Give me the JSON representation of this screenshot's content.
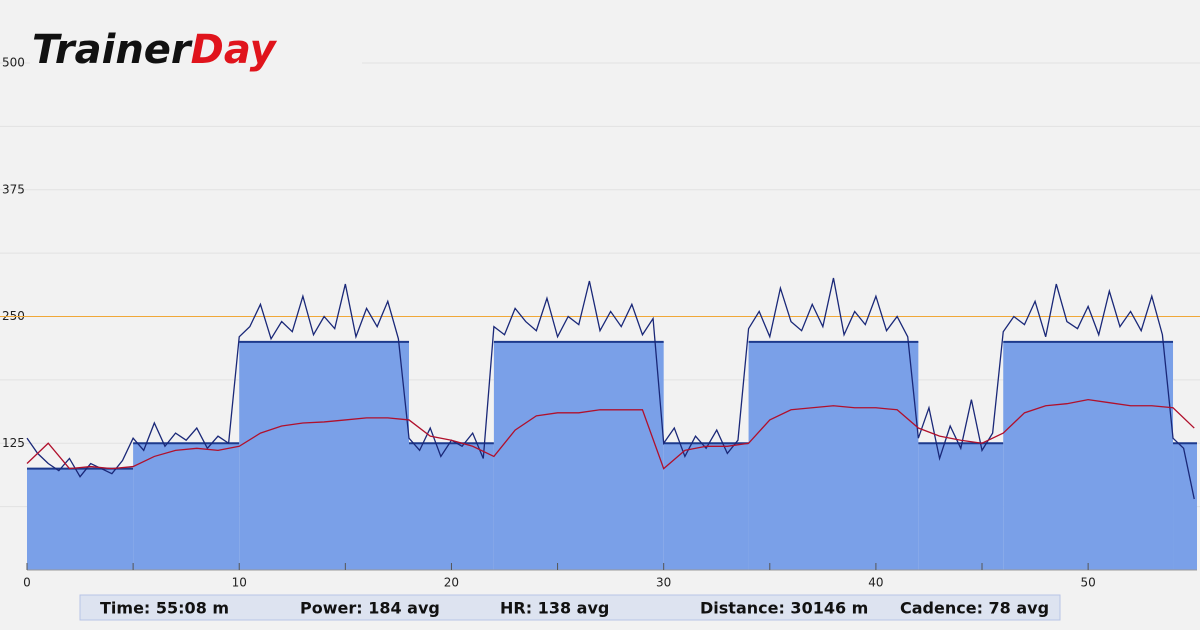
{
  "logo": {
    "brand": "Trainer",
    "accent": "Day"
  },
  "chart_data": {
    "type": "line",
    "xlim": [
      0,
      55.13
    ],
    "xticks": [
      0,
      10,
      20,
      30,
      40,
      50
    ],
    "x_minor_ticks": [
      5,
      15,
      25,
      35,
      45
    ],
    "ylim": [
      0,
      500
    ],
    "yticks": [
      125,
      250,
      375,
      500
    ],
    "y_minor_grid": [
      62.5,
      187.5,
      312.5,
      437.5
    ],
    "grid": true,
    "threshold": {
      "value": 250,
      "color": "#f0a838"
    },
    "target": {
      "color": "#7aa0e8",
      "edge_color": "#1d3a8c",
      "starts": [
        0,
        5,
        10,
        18,
        22,
        30,
        34,
        42,
        46,
        54
      ],
      "ends": [
        5,
        10,
        18,
        22,
        30,
        34,
        42,
        46,
        54,
        55.13
      ],
      "values": [
        100,
        125,
        225,
        125,
        225,
        125,
        225,
        125,
        225,
        125
      ]
    },
    "series": [
      {
        "color": "#1a2878",
        "x": [
          0,
          0.5,
          1,
          1.5,
          2,
          2.5,
          3,
          3.5,
          4,
          4.5,
          5,
          5.5,
          6,
          6.5,
          7,
          7.5,
          8,
          8.5,
          9,
          9.5,
          10,
          10.5,
          11,
          11.5,
          12,
          12.5,
          13,
          13.5,
          14,
          14.5,
          15,
          15.5,
          16,
          16.5,
          17,
          17.5,
          18,
          18.5,
          19,
          19.5,
          20,
          20.5,
          21,
          21.5,
          22,
          22.5,
          23,
          23.5,
          24,
          24.5,
          25,
          25.5,
          26,
          26.5,
          27,
          27.5,
          28,
          28.5,
          29,
          29.5,
          30,
          30.5,
          31,
          31.5,
          32,
          32.5,
          33,
          33.5,
          34,
          34.5,
          35,
          35.5,
          36,
          36.5,
          37,
          37.5,
          38,
          38.5,
          39,
          39.5,
          40,
          40.5,
          41,
          41.5,
          42,
          42.5,
          43,
          43.5,
          44,
          44.5,
          45,
          45.5,
          46,
          46.5,
          47,
          47.5,
          48,
          48.5,
          49,
          49.5,
          50,
          50.5,
          51,
          51.5,
          52,
          52.5,
          53,
          53.5,
          54,
          54.5,
          55
        ],
        "values": [
          130,
          115,
          105,
          98,
          110,
          92,
          105,
          100,
          95,
          108,
          130,
          118,
          145,
          122,
          135,
          128,
          140,
          120,
          132,
          125,
          230,
          240,
          262,
          228,
          245,
          235,
          270,
          232,
          250,
          238,
          282,
          230,
          258,
          240,
          265,
          228,
          130,
          118,
          140,
          112,
          128,
          122,
          135,
          110,
          240,
          232,
          258,
          245,
          236,
          268,
          230,
          250,
          242,
          285,
          236,
          255,
          240,
          262,
          232,
          248,
          125,
          140,
          112,
          132,
          120,
          138,
          115,
          128,
          238,
          255,
          230,
          278,
          245,
          236,
          262,
          240,
          288,
          232,
          255,
          242,
          270,
          236,
          250,
          230,
          130,
          160,
          110,
          142,
          120,
          168,
          118,
          135,
          235,
          250,
          242,
          265,
          230,
          282,
          245,
          238,
          260,
          232,
          275,
          240,
          255,
          236,
          270,
          232,
          130,
          120,
          70
        ]
      },
      {
        "color": "#b0102c",
        "x": [
          0,
          1,
          2,
          3,
          4,
          5,
          6,
          7,
          8,
          9,
          10,
          11,
          12,
          13,
          14,
          15,
          16,
          17,
          18,
          19,
          20,
          21,
          22,
          23,
          24,
          25,
          26,
          27,
          28,
          29,
          30,
          31,
          32,
          33,
          34,
          35,
          36,
          37,
          38,
          39,
          40,
          41,
          42,
          43,
          44,
          45,
          46,
          47,
          48,
          49,
          50,
          51,
          52,
          53,
          54,
          55
        ],
        "values": [
          105,
          125,
          100,
          102,
          100,
          102,
          112,
          118,
          120,
          118,
          122,
          135,
          142,
          145,
          146,
          148,
          150,
          150,
          148,
          132,
          128,
          122,
          112,
          138,
          152,
          155,
          155,
          158,
          158,
          158,
          100,
          118,
          122,
          122,
          125,
          148,
          158,
          160,
          162,
          160,
          160,
          158,
          140,
          132,
          128,
          125,
          135,
          155,
          162,
          164,
          168,
          165,
          162,
          162,
          160,
          140
        ]
      }
    ]
  },
  "stats": [
    "Time: 55:08 m",
    "Power: 184 avg",
    "HR: 138 avg",
    "Distance: 30146 m",
    "Cadence: 78 avg"
  ]
}
